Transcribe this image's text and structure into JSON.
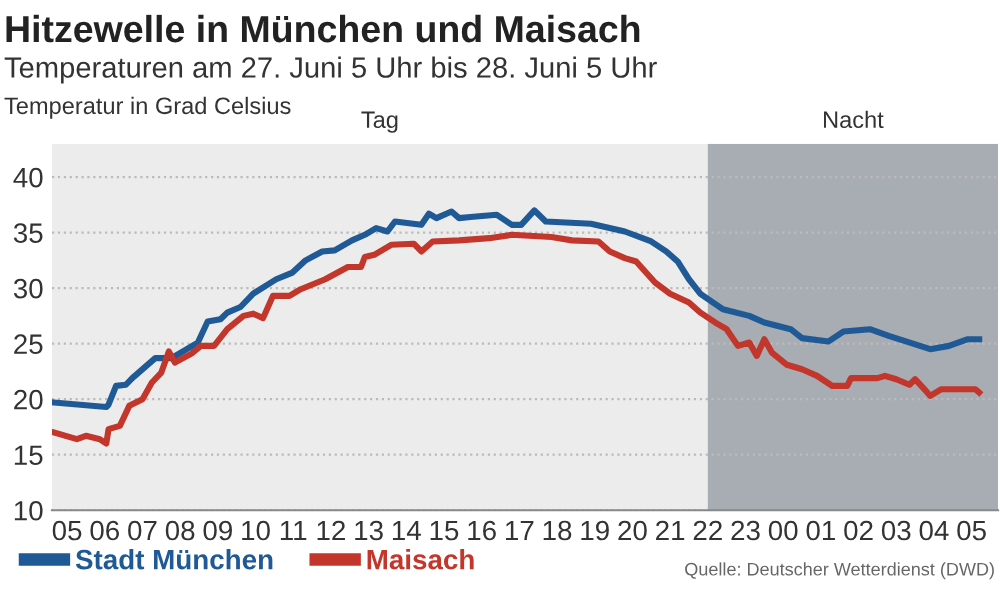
{
  "chart_data": {
    "type": "line",
    "title": "Hitzewelle in München und Maisach",
    "subtitle": "Temperaturen am 27. Juni 5 Uhr bis 28. Juni 5 Uhr",
    "ylabel": "Temperatur in Grad Celsius",
    "annotations": [
      "Quelle: Deutscher Wetterdienst (DWD)"
    ],
    "series": [
      {
        "name": "Stadt München",
        "color": "#1f5a96",
        "x": [
          4.65,
          6.04,
          6.1,
          6.3,
          6.56,
          6.73,
          7.34,
          7.77,
          8.47,
          8.73,
          9.07,
          9.25,
          9.6,
          9.94,
          10.55,
          10.98,
          11.33,
          11.77,
          12.1,
          12.56,
          12.9,
          13.2,
          13.5,
          13.7,
          14.4,
          14.6,
          14.8,
          15.2,
          15.4,
          15.7,
          16.4,
          16.8,
          17.05,
          17.4,
          17.7,
          18.9,
          19.8,
          20.5,
          20.9,
          21.2,
          21.5,
          21.8,
          22.4,
          23.1,
          23.5,
          24.2,
          24.5,
          25.2,
          25.6,
          26.3,
          26.8,
          27.9,
          28.4,
          28.9,
          29.2
        ],
        "values": [
          19.7,
          19.3,
          19.5,
          21.2,
          21.3,
          21.9,
          23.7,
          23.7,
          25.1,
          27.0,
          27.2,
          27.8,
          28.3,
          29.5,
          30.8,
          31.4,
          32.5,
          33.3,
          33.4,
          34.3,
          34.8,
          35.4,
          35.1,
          36.0,
          35.7,
          36.7,
          36.3,
          36.9,
          36.3,
          36.4,
          36.6,
          35.7,
          35.7,
          37.0,
          36.0,
          35.8,
          35.1,
          34.2,
          33.3,
          32.4,
          30.8,
          29.5,
          28.1,
          27.5,
          26.9,
          26.3,
          25.5,
          25.2,
          26.1,
          26.3,
          25.7,
          24.5,
          24.8,
          25.4,
          25.4
        ]
      },
      {
        "name": "Maisach",
        "color": "#c3362b",
        "x": [
          4.65,
          5.26,
          5.5,
          5.87,
          6.04,
          6.1,
          6.4,
          6.65,
          7.0,
          7.25,
          7.5,
          7.7,
          7.86,
          8.3,
          8.55,
          8.9,
          9.25,
          9.68,
          9.94,
          10.2,
          10.46,
          10.9,
          11.2,
          11.85,
          12.45,
          12.8,
          12.9,
          13.15,
          13.6,
          14.2,
          14.4,
          14.7,
          15.4,
          16.2,
          16.8,
          17.85,
          18.4,
          19.1,
          19.4,
          19.8,
          20.1,
          20.6,
          21.0,
          21.5,
          21.8,
          22.2,
          22.5,
          22.8,
          23.1,
          23.3,
          23.5,
          23.7,
          24.1,
          24.5,
          24.9,
          25.3,
          25.7,
          25.8,
          26.5,
          26.7,
          27.0,
          27.35,
          27.5,
          27.8,
          27.9,
          28.2,
          29.1,
          29.2
        ],
        "values": [
          17.0,
          16.4,
          16.7,
          16.4,
          16.0,
          17.3,
          17.6,
          19.4,
          20.0,
          21.5,
          22.4,
          24.3,
          23.3,
          24.1,
          24.8,
          24.8,
          26.3,
          27.5,
          27.7,
          27.3,
          29.3,
          29.3,
          29.9,
          30.8,
          31.9,
          31.9,
          32.8,
          33.0,
          33.9,
          34.0,
          33.3,
          34.2,
          34.3,
          34.5,
          34.8,
          34.6,
          34.3,
          34.2,
          33.3,
          32.7,
          32.4,
          30.5,
          29.5,
          28.7,
          27.8,
          26.9,
          26.3,
          24.8,
          25.1,
          23.9,
          25.4,
          24.2,
          23.1,
          22.7,
          22.1,
          21.2,
          21.2,
          21.9,
          21.9,
          22.1,
          21.8,
          21.3,
          21.8,
          20.7,
          20.3,
          20.9,
          20.9,
          20.6
        ]
      }
    ],
    "xlim": [
      4.6,
      29.7
    ],
    "xticks": [
      {
        "value": 5,
        "label": "05"
      },
      {
        "value": 6,
        "label": "06"
      },
      {
        "value": 7,
        "label": "07"
      },
      {
        "value": 8,
        "label": "08"
      },
      {
        "value": 9,
        "label": "09"
      },
      10,
      11,
      12,
      13,
      14,
      15,
      16,
      17,
      18,
      19,
      20,
      21,
      22,
      23,
      {
        "value": 24,
        "label": "00"
      },
      {
        "value": 25,
        "label": "01"
      },
      {
        "value": 26,
        "label": "02"
      },
      {
        "value": 27,
        "label": "03"
      },
      {
        "value": 28,
        "label": "04"
      },
      {
        "value": 29,
        "label": "05"
      }
    ],
    "ylim": [
      10,
      43
    ],
    "yticks": [
      10,
      15,
      20,
      25,
      30,
      35,
      40
    ],
    "bands": [
      {
        "axis": "x",
        "from": 4.6,
        "to": 22,
        "label": "Tag",
        "color": "#ececec"
      },
      {
        "axis": "x",
        "from": 22,
        "to": 29.7,
        "label": "Nacht",
        "color": "#a8acb3"
      }
    ],
    "grid": "y",
    "legend": "bottom",
    "marker": "none",
    "line_style": "solid"
  }
}
